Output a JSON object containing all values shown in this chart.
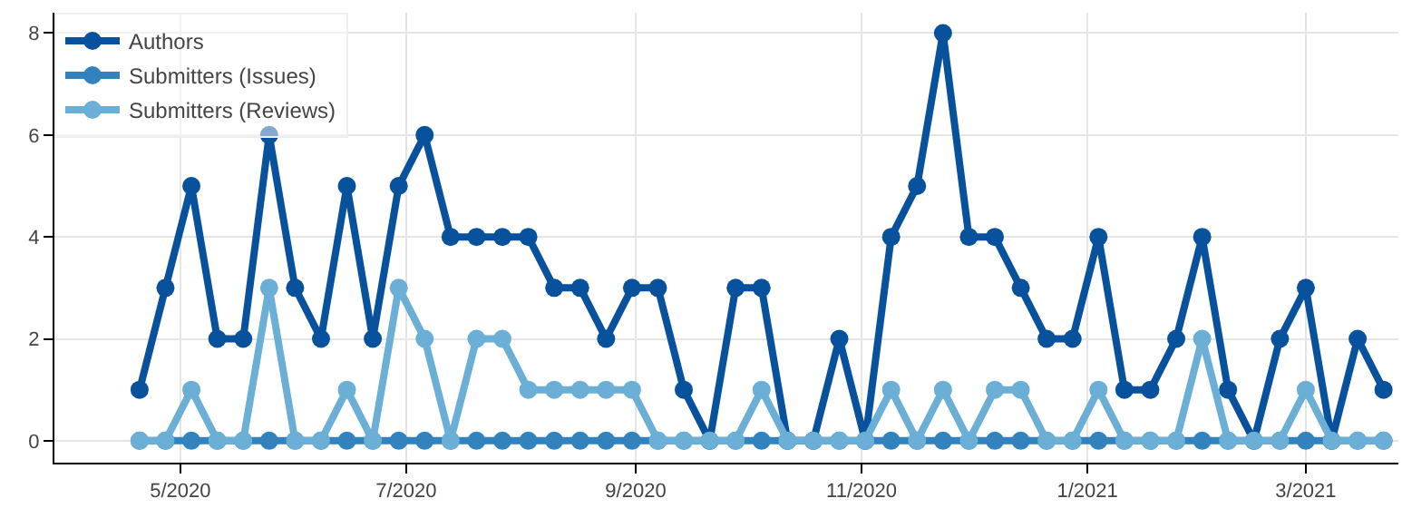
{
  "chart_data": {
    "type": "line",
    "x": [
      "2020-04-20",
      "2020-04-27",
      "2020-05-04",
      "2020-05-11",
      "2020-05-18",
      "2020-05-25",
      "2020-06-01",
      "2020-06-08",
      "2020-06-15",
      "2020-06-22",
      "2020-06-29",
      "2020-07-06",
      "2020-07-13",
      "2020-07-20",
      "2020-07-27",
      "2020-08-03",
      "2020-08-10",
      "2020-08-17",
      "2020-08-24",
      "2020-08-31",
      "2020-09-07",
      "2020-09-14",
      "2020-09-21",
      "2020-09-28",
      "2020-10-05",
      "2020-10-12",
      "2020-10-19",
      "2020-10-26",
      "2020-11-02",
      "2020-11-09",
      "2020-11-16",
      "2020-11-23",
      "2020-11-30",
      "2020-12-07",
      "2020-12-14",
      "2020-12-21",
      "2020-12-28",
      "2021-01-04",
      "2021-01-11",
      "2021-01-18",
      "2021-01-25",
      "2021-02-01",
      "2021-02-08",
      "2021-02-15",
      "2021-02-22",
      "2021-03-01",
      "2021-03-08",
      "2021-03-15",
      "2021-03-22"
    ],
    "series": [
      {
        "name": "Authors",
        "color": "#08519c",
        "values": [
          1,
          3,
          5,
          2,
          2,
          6,
          3,
          2,
          5,
          2,
          5,
          6,
          4,
          4,
          4,
          4,
          3,
          3,
          2,
          3,
          3,
          1,
          0,
          3,
          3,
          0,
          0,
          2,
          0,
          4,
          5,
          8,
          4,
          4,
          3,
          2,
          2,
          4,
          1,
          1,
          2,
          4,
          1,
          0,
          2,
          3,
          0,
          2,
          1
        ]
      },
      {
        "name": "Submitters (Issues)",
        "color": "#3182bd",
        "values": [
          0,
          0,
          0,
          0,
          0,
          0,
          0,
          0,
          0,
          0,
          0,
          0,
          0,
          0,
          0,
          0,
          0,
          0,
          0,
          0,
          0,
          0,
          0,
          0,
          0,
          0,
          0,
          0,
          0,
          0,
          0,
          0,
          0,
          0,
          0,
          0,
          0,
          0,
          0,
          0,
          0,
          0,
          0,
          0,
          0,
          0,
          0,
          0,
          0
        ]
      },
      {
        "name": "Submitters (Reviews)",
        "color": "#6baed6",
        "values": [
          0,
          0,
          1,
          0,
          0,
          3,
          0,
          0,
          1,
          0,
          3,
          2,
          0,
          2,
          2,
          1,
          1,
          1,
          1,
          1,
          0,
          0,
          0,
          0,
          1,
          0,
          0,
          0,
          0,
          1,
          0,
          1,
          0,
          1,
          1,
          0,
          0,
          1,
          0,
          0,
          0,
          2,
          0,
          0,
          0,
          1,
          0,
          0,
          0
        ]
      }
    ],
    "xlim": [
      "2020-03-28",
      "2021-03-26"
    ],
    "xticks": [
      {
        "value": "2020-05-01",
        "label": "5/2020"
      },
      {
        "value": "2020-07-01",
        "label": "7/2020"
      },
      {
        "value": "2020-09-01",
        "label": "9/2020"
      },
      {
        "value": "2020-11-01",
        "label": "11/2020"
      },
      {
        "value": "2021-01-01",
        "label": "1/2021"
      },
      {
        "value": "2021-03-01",
        "label": "3/2021"
      }
    ],
    "ylim": [
      -0.43,
      8.4
    ],
    "yticks": [
      0,
      2,
      4,
      6,
      8
    ],
    "grid": true,
    "legend": "top left",
    "marker": "circle",
    "line_style": "solid"
  }
}
